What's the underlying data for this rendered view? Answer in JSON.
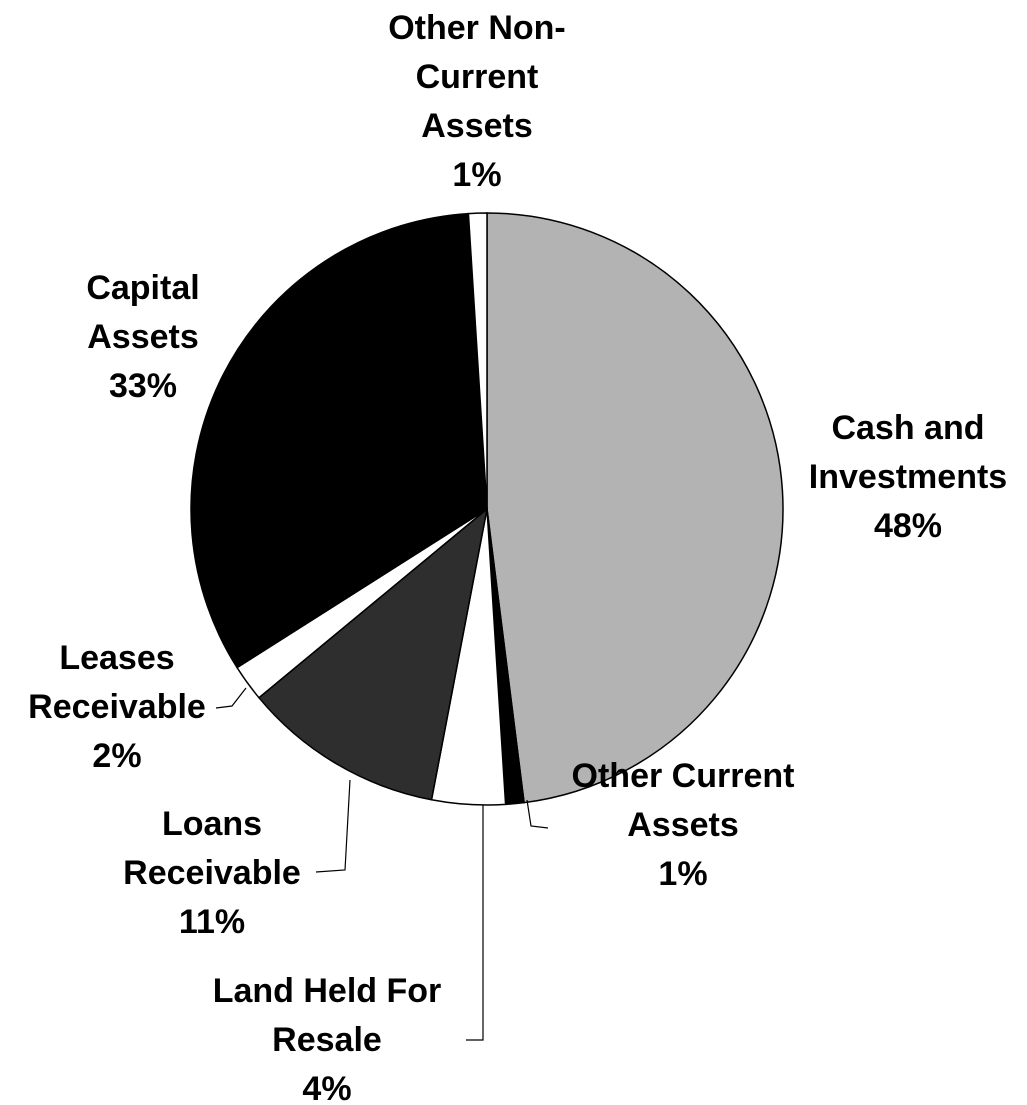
{
  "chart_data": {
    "type": "pie",
    "categories": [
      [
        "Cash and",
        "Investments"
      ],
      [
        "Other Current",
        "Assets"
      ],
      [
        "Land Held For",
        "Resale"
      ],
      [
        "Loans",
        "Receivable"
      ],
      [
        "Leases",
        "Receivable"
      ],
      [
        "Capital",
        "Assets"
      ],
      [
        "Other Non-",
        "Current",
        "Assets"
      ]
    ],
    "values": [
      48,
      1,
      4,
      11,
      2,
      33,
      1
    ],
    "value_labels": [
      "48%",
      "1%",
      "4%",
      "11%",
      "2%",
      "33%",
      "1%"
    ],
    "colors": [
      "#b3b3b3",
      "#000000",
      "#ffffff",
      "#2e2e2e",
      "#ffffff",
      "#000000",
      "#ffffff"
    ]
  }
}
